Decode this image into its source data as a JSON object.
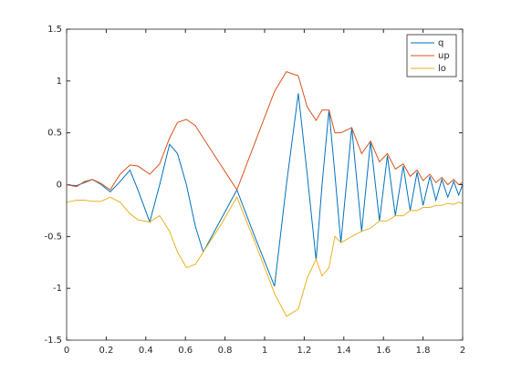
{
  "chart_data": {
    "type": "line",
    "x": [
      0,
      0.025,
      0.05,
      0.09,
      0.13,
      0.175,
      0.22,
      0.27,
      0.32,
      0.36,
      0.42,
      0.47,
      0.52,
      0.56,
      0.605,
      0.65,
      0.69,
      0.775,
      0.86,
      0.95,
      1.05,
      1.11,
      1.17,
      1.215,
      1.26,
      1.29,
      1.325,
      1.355,
      1.385,
      1.44,
      1.49,
      1.535,
      1.58,
      1.62,
      1.66,
      1.7,
      1.735,
      1.77,
      1.8,
      1.835,
      1.865,
      1.895,
      1.925,
      1.955,
      1.98,
      2.0
    ],
    "series": [
      {
        "name": "q",
        "color": "#0072BD",
        "values": [
          0,
          -0.005,
          -0.01,
          0.02,
          0.05,
          0,
          -0.07,
          0.03,
          0.14,
          -0.05,
          -0.36,
          0.0,
          0.39,
          0.3,
          0.0,
          -0.4,
          -0.65,
          -0.35,
          -0.05,
          -0.5,
          -0.98,
          0,
          0.88,
          0.1,
          -0.73,
          0,
          0.72,
          0.1,
          -0.56,
          0.55,
          -0.45,
          0.42,
          -0.35,
          0.28,
          -0.3,
          0.18,
          -0.25,
          0.12,
          -0.2,
          0.08,
          -0.15,
          0.05,
          -0.12,
          0.03,
          -0.1,
          0
        ]
      },
      {
        "name": "up",
        "color": "#D95319",
        "values": [
          0,
          -0.01,
          -0.02,
          0.03,
          0.05,
          0.01,
          -0.05,
          0.1,
          0.19,
          0.18,
          0.1,
          0.2,
          0.45,
          0.6,
          0.63,
          0.57,
          0.45,
          0.2,
          -0.05,
          0.4,
          0.9,
          1.09,
          1.05,
          0.75,
          0.62,
          0.72,
          0.72,
          0.5,
          0.5,
          0.55,
          0.3,
          0.42,
          0.22,
          0.3,
          0.15,
          0.2,
          0.08,
          0.14,
          0.04,
          0.1,
          0.02,
          0.07,
          0.0,
          0.05,
          0.0,
          0.02
        ]
      },
      {
        "name": "lo",
        "color": "#EDB120",
        "values": [
          -0.17,
          -0.16,
          -0.15,
          -0.15,
          -0.16,
          -0.16,
          -0.12,
          -0.17,
          -0.28,
          -0.34,
          -0.36,
          -0.3,
          -0.45,
          -0.65,
          -0.8,
          -0.77,
          -0.65,
          -0.4,
          -0.12,
          -0.55,
          -1.05,
          -1.27,
          -1.2,
          -0.9,
          -0.72,
          -0.88,
          -0.8,
          -0.5,
          -0.56,
          -0.5,
          -0.45,
          -0.42,
          -0.35,
          -0.35,
          -0.3,
          -0.3,
          -0.25,
          -0.25,
          -0.22,
          -0.22,
          -0.2,
          -0.2,
          -0.18,
          -0.19,
          -0.17,
          -0.18
        ]
      }
    ],
    "xlim": [
      0,
      2
    ],
    "xticks": [
      0,
      0.2,
      0.4,
      0.6,
      0.8,
      1,
      1.2,
      1.4,
      1.6,
      1.8,
      2
    ],
    "ylim": [
      -1.5,
      1.5
    ],
    "yticks": [
      -1.5,
      -1,
      -0.5,
      0,
      0.5,
      1,
      1.5
    ],
    "grid": false,
    "legend": "northeast"
  }
}
